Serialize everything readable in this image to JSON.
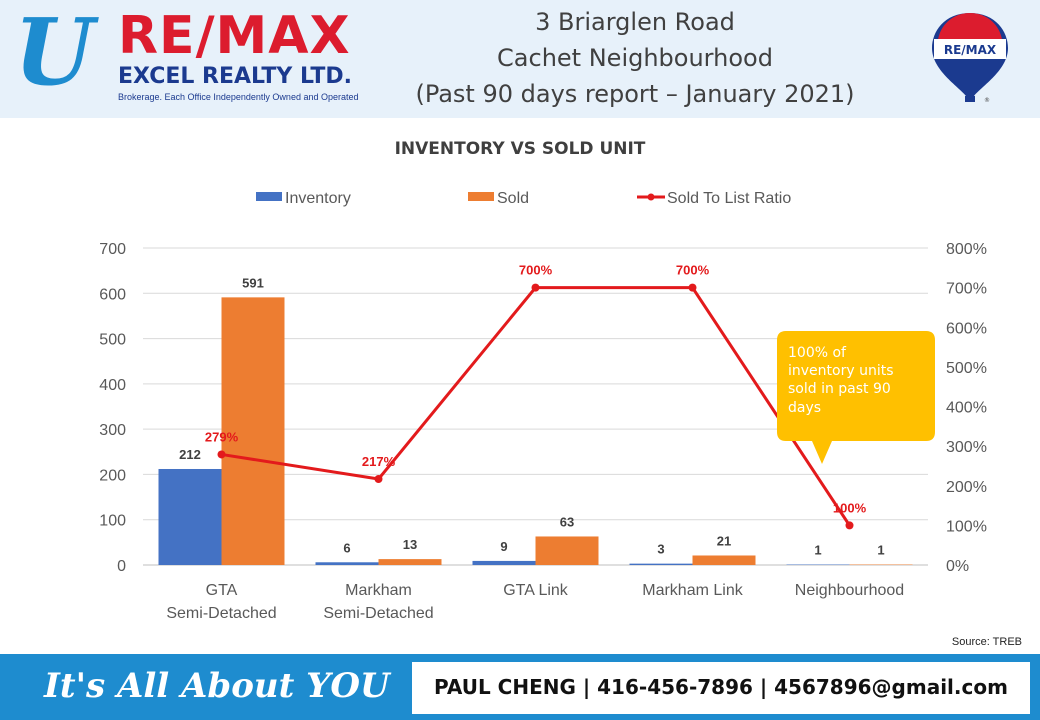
{
  "header": {
    "logo_u": "U",
    "logo_brand": "RE/MAX",
    "logo_company": "EXCEL REALTY LTD.",
    "logo_tagline": "Brokerage. Each Office Independently Owned and Operated",
    "title_line1": "3 Briarglen Road",
    "title_line2": "Cachet Neighbourhood",
    "title_line3": "(Past 90 days report – January 2021)",
    "balloon_label": "RE/MAX",
    "balloon_mark": "®"
  },
  "chart_data": {
    "type": "bar",
    "title": "INVENTORY VS SOLD UNIT",
    "categories": [
      [
        "GTA",
        "Semi-Detached"
      ],
      [
        "Markham",
        "Semi-Detached"
      ],
      [
        "GTA Link"
      ],
      [
        "Markham Link"
      ],
      [
        "Neighbourhood"
      ]
    ],
    "series": [
      {
        "name": "Inventory",
        "kind": "bar",
        "axis": "left",
        "color": "#4472c4",
        "values": [
          212,
          6,
          9,
          3,
          1
        ]
      },
      {
        "name": "Sold",
        "kind": "bar",
        "axis": "left",
        "color": "#ed7d31",
        "values": [
          591,
          13,
          63,
          21,
          1
        ]
      },
      {
        "name": "Sold To List Ratio",
        "kind": "line",
        "axis": "right",
        "color": "#e31a1c",
        "values": [
          279,
          217,
          700,
          700,
          100
        ],
        "labels": [
          "279%",
          "217%",
          "700%",
          "700%",
          "100%"
        ]
      }
    ],
    "ylim": [
      0,
      700
    ],
    "yticks": [
      "0",
      "100",
      "200",
      "300",
      "400",
      "500",
      "600",
      "700"
    ],
    "y2lim": [
      0,
      800
    ],
    "y2ticks": [
      "0%",
      "100%",
      "200%",
      "300%",
      "400%",
      "500%",
      "600%",
      "700%",
      "800%"
    ],
    "grid": true,
    "legend": "top-center",
    "annotation": {
      "lines": [
        "100% of",
        "inventory units",
        "sold in past 90",
        "days"
      ],
      "color": "#ffc000"
    }
  },
  "source": "Source: TREB",
  "footer": {
    "slogan": "It's All About YOU",
    "contact": "PAUL CHENG | 416-456-7896 | 4567896@gmail.com"
  }
}
